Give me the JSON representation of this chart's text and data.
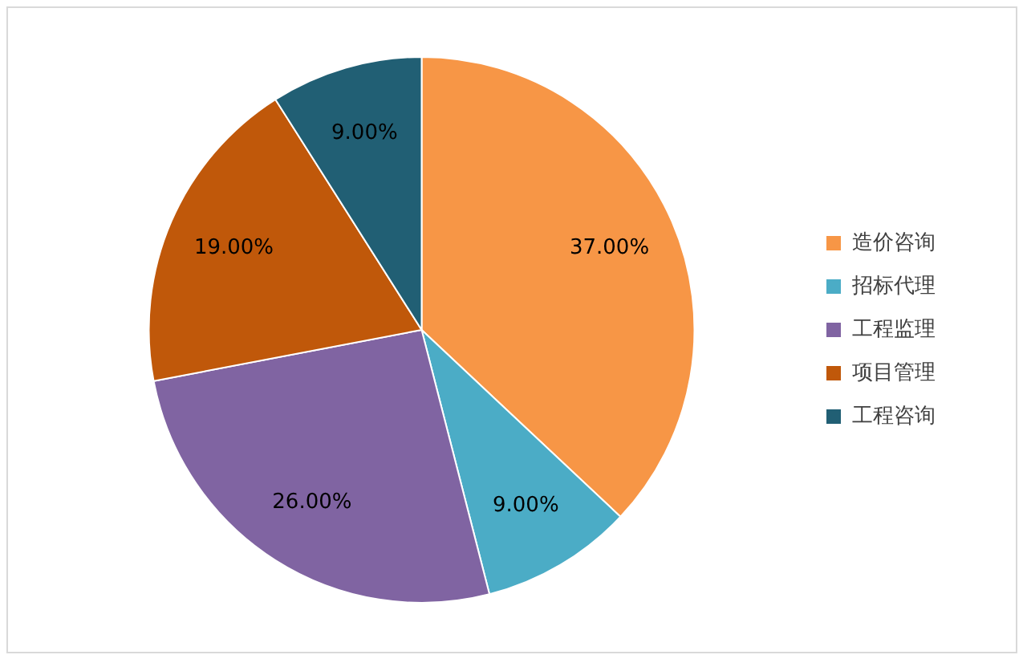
{
  "chart_data": {
    "type": "pie",
    "categories": [
      "造价咨询",
      "招标代理",
      "工程监理",
      "项目管理",
      "工程咨询"
    ],
    "values": [
      37,
      9,
      26,
      19,
      9
    ],
    "colors": [
      "#f79646",
      "#4bacc6",
      "#8064a2",
      "#c0580a",
      "#215f74"
    ],
    "value_labels": [
      "37.00%",
      "9.00%",
      "26.00%",
      "19.00%",
      "9.00%"
    ],
    "legend": "right"
  }
}
